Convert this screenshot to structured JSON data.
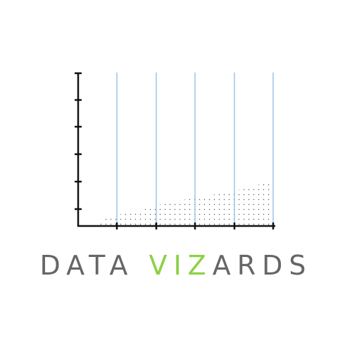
{
  "brand": {
    "word_part_1": "DATA ",
    "word_part_2": "VIZ",
    "word_part_3": "ARDS",
    "text_color": "#666666",
    "accent_color": "#8dd144"
  },
  "graphic": {
    "axis_color": "#111111",
    "gridline_color": "#9ec3ea",
    "dot_color": "#555555",
    "y_ticks": 6,
    "x_gridlines": 5
  }
}
